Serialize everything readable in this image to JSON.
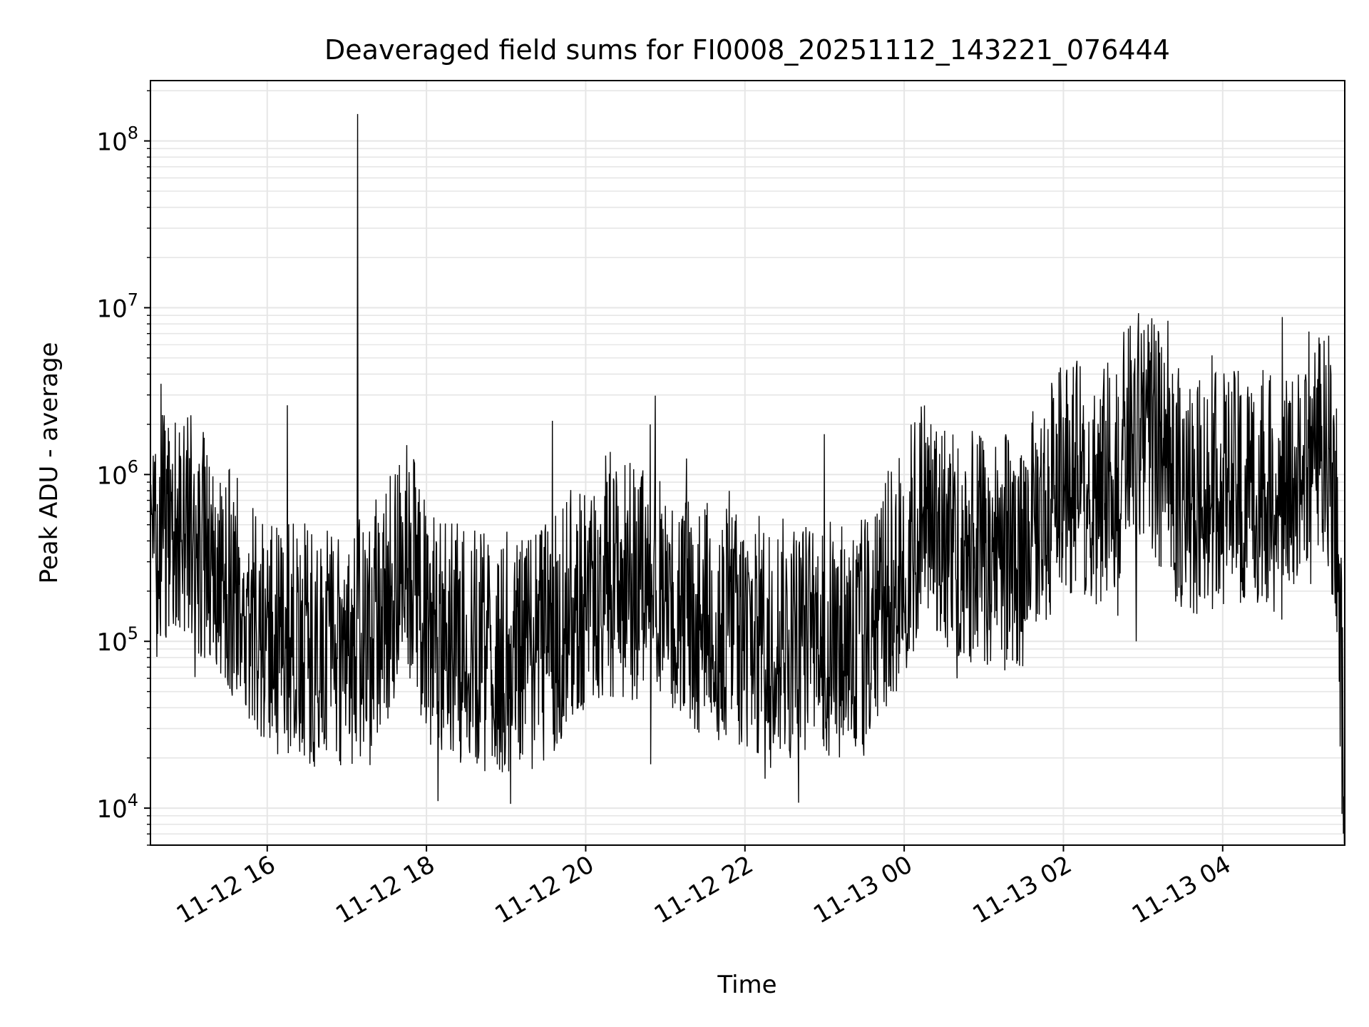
{
  "chart_data": {
    "type": "line",
    "title": "Deaveraged field sums for FI0008_20251112_143221_076444",
    "xlabel": "Time",
    "ylabel": "Peak ADU - average",
    "y_scale": "log",
    "ylim": [
      6000,
      230000000
    ],
    "xlim": [
      "2025-11-12 14:32",
      "2025-11-13 05:32"
    ],
    "grid": true,
    "line_color": "#000000",
    "grid_color": "#e6e6e6",
    "x_ticks": [
      {
        "value": "2025-11-12 16:00",
        "label": "11-12 16"
      },
      {
        "value": "2025-11-12 18:00",
        "label": "11-12 18"
      },
      {
        "value": "2025-11-12 20:00",
        "label": "11-12 20"
      },
      {
        "value": "2025-11-12 22:00",
        "label": "11-12 22"
      },
      {
        "value": "2025-11-13 00:00",
        "label": "11-13 00"
      },
      {
        "value": "2025-11-13 02:00",
        "label": "11-13 02"
      },
      {
        "value": "2025-11-13 04:00",
        "label": "11-13 04"
      }
    ],
    "y_ticks": [
      {
        "value": 10000,
        "base": "10",
        "exp": "4"
      },
      {
        "value": 100000,
        "base": "10",
        "exp": "5"
      },
      {
        "value": 1000000,
        "base": "10",
        "exp": "6"
      },
      {
        "value": 10000000,
        "base": "10",
        "exp": "7"
      },
      {
        "value": 100000000,
        "base": "10",
        "exp": "8"
      }
    ],
    "series": [
      {
        "baseline": {
          "x": [
            "2025-11-12 14:32",
            "2025-11-12 14:45",
            "2025-11-12 15:00",
            "2025-11-12 15:15",
            "2025-11-12 15:30",
            "2025-11-12 15:45",
            "2025-11-12 16:00",
            "2025-11-12 16:30",
            "2025-11-12 17:00",
            "2025-11-12 17:30",
            "2025-11-12 17:45",
            "2025-11-12 18:00",
            "2025-11-12 18:30",
            "2025-11-12 19:00",
            "2025-11-12 19:30",
            "2025-11-12 20:00",
            "2025-11-12 20:30",
            "2025-11-12 21:00",
            "2025-11-12 21:30",
            "2025-11-12 22:00",
            "2025-11-12 22:30",
            "2025-11-12 23:00",
            "2025-11-12 23:30",
            "2025-11-13 00:00",
            "2025-11-13 00:15",
            "2025-11-13 00:30",
            "2025-11-13 01:00",
            "2025-11-13 01:30",
            "2025-11-13 02:00",
            "2025-11-13 02:30",
            "2025-11-13 03:00",
            "2025-11-13 03:15",
            "2025-11-13 03:30",
            "2025-11-13 04:00",
            "2025-11-13 04:30",
            "2025-11-13 04:45",
            "2025-11-13 05:00",
            "2025-11-13 05:15",
            "2025-11-13 05:25",
            "2025-11-13 05:32"
          ],
          "y": [
            300000,
            500000,
            450000,
            350000,
            250000,
            150000,
            100000,
            90000,
            80000,
            150000,
            350000,
            120000,
            90000,
            70000,
            90000,
            200000,
            230000,
            180000,
            130000,
            110000,
            100000,
            100000,
            100000,
            300000,
            600000,
            400000,
            300000,
            350000,
            900000,
            800000,
            2000000,
            1200000,
            700000,
            750000,
            800000,
            600000,
            900000,
            1300000,
            800000,
            12000
          ]
        },
        "spikes": [
          {
            "x": "2025-11-12 14:40",
            "y": 3500000
          },
          {
            "x": "2025-11-12 15:00",
            "y": 2200000
          },
          {
            "x": "2025-11-12 16:15",
            "y": 2600000
          },
          {
            "x": "2025-11-12 17:08",
            "y": 145000000
          },
          {
            "x": "2025-11-12 17:45",
            "y": 1500000
          },
          {
            "x": "2025-11-12 19:35",
            "y": 2100000
          },
          {
            "x": "2025-11-12 20:15",
            "y": 1300000
          },
          {
            "x": "2025-11-13 02:15",
            "y": 2600000
          },
          {
            "x": "2025-11-13 03:00",
            "y": 4100000
          },
          {
            "x": "2025-11-13 04:45",
            "y": 8800000
          },
          {
            "x": "2025-11-13 05:05",
            "y": 7200000
          },
          {
            "x": "2025-11-13 05:20",
            "y": 6800000
          }
        ],
        "dips": [
          {
            "x": "2025-11-12 22:15",
            "y": 15000
          },
          {
            "x": "2025-11-12 18:55",
            "y": 17000
          },
          {
            "x": "2025-11-12 16:35",
            "y": 19000
          },
          {
            "x": "2025-11-13 00:40",
            "y": 60000
          },
          {
            "x": "2025-11-13 02:55",
            "y": 100000
          },
          {
            "x": "2025-11-13 05:32",
            "y": 9500
          }
        ]
      }
    ]
  }
}
